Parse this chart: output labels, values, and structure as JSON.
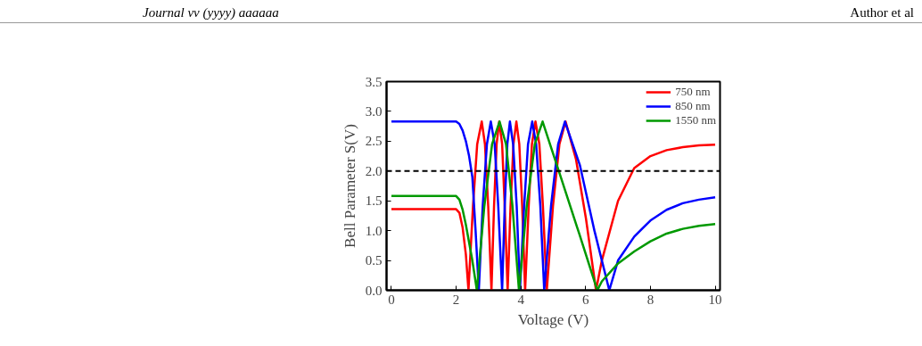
{
  "chart_data": {
    "type": "line",
    "xlabel": "Voltage (V)",
    "ylabel": "Bell Parameter S(V)",
    "annotations": [
      "Journal vv (yyyy) aaaaaa",
      "Author et al"
    ],
    "xlim": [
      -0.15,
      10.15
    ],
    "ylim": [
      0,
      3.5
    ],
    "xticks": [
      0,
      2,
      4,
      6,
      8,
      10
    ],
    "yticks": [
      {
        "value": 0,
        "label": "0.0"
      },
      {
        "value": 0.5,
        "label": "0.5"
      },
      {
        "value": 1,
        "label": "1.0"
      },
      {
        "value": 1.5,
        "label": "1.5"
      },
      {
        "value": 2,
        "label": "2.0"
      },
      {
        "value": 2.5,
        "label": "2.5"
      },
      {
        "value": 3,
        "label": "3.0"
      },
      {
        "value": 3.5,
        "label": "3.5"
      }
    ],
    "grid": false,
    "legend": "top right",
    "line_style": "solid",
    "marker": "none",
    "ref_lines": [
      {
        "axis": "y",
        "value": 2,
        "color": "#000000",
        "line_style": "dashed"
      }
    ],
    "series": [
      {
        "name": "750 nm",
        "color": "#ff0000",
        "x": [
          0,
          1,
          2.0,
          2.1,
          2.2,
          2.3,
          2.38,
          2.52,
          2.65,
          2.79,
          2.89,
          2.99,
          3.09,
          3.17,
          3.25,
          3.33,
          3.42,
          3.5,
          3.59,
          3.68,
          3.77,
          3.86,
          3.95,
          4.04,
          4.13,
          4.24,
          4.34,
          4.45,
          4.57,
          4.68,
          4.8,
          4.99,
          5.19,
          5.38,
          5.7,
          6.01,
          6.32,
          6.5,
          7.0,
          7.5,
          8.0,
          8.5,
          9.0,
          9.5,
          10
        ],
        "values": [
          1.36,
          1.36,
          1.36,
          1.3,
          1.05,
          0.6,
          0,
          1.41,
          2.45,
          2.83,
          2.45,
          1.41,
          0,
          1.41,
          2.45,
          2.83,
          2.45,
          1.41,
          0,
          1.41,
          2.45,
          2.83,
          2.45,
          1.41,
          0,
          1.41,
          2.45,
          2.83,
          2.45,
          1.41,
          0,
          1.41,
          2.45,
          2.83,
          2.2,
          1.2,
          0,
          0.5,
          1.5,
          2.05,
          2.25,
          2.35,
          2.4,
          2.43,
          2.44
        ]
      },
      {
        "name": "850 nm",
        "color": "#0000ff",
        "x": [
          0,
          1,
          2.0,
          2.1,
          2.2,
          2.3,
          2.4,
          2.5,
          2.6,
          2.7,
          2.82,
          2.95,
          3.07,
          3.19,
          3.3,
          3.42,
          3.5,
          3.58,
          3.66,
          3.76,
          3.87,
          3.97,
          4.1,
          4.22,
          4.35,
          4.47,
          4.6,
          4.72,
          4.93,
          5.15,
          5.36,
          5.82,
          6.27,
          6.73,
          7.0,
          7.5,
          8.0,
          8.5,
          9.0,
          9.5,
          10
        ],
        "values": [
          2.83,
          2.83,
          2.83,
          2.79,
          2.68,
          2.5,
          2.25,
          1.9,
          1.0,
          0,
          1.41,
          2.45,
          2.83,
          2.45,
          1.41,
          0,
          1.41,
          2.45,
          2.83,
          2.45,
          1.41,
          0,
          1.41,
          2.45,
          2.83,
          2.45,
          1.41,
          0,
          1.41,
          2.45,
          2.83,
          2.1,
          1.0,
          0,
          0.5,
          0.9,
          1.17,
          1.35,
          1.46,
          1.52,
          1.56
        ]
      },
      {
        "name": "1550 nm",
        "color": "#009900",
        "x": [
          0,
          1,
          2.0,
          2.1,
          2.2,
          2.3,
          2.4,
          2.5,
          2.64,
          2.87,
          3.11,
          3.34,
          3.54,
          3.74,
          3.94,
          4.18,
          4.43,
          4.67,
          5.23,
          5.8,
          6.36,
          6.5,
          7.0,
          7.5,
          8.0,
          8.5,
          9.0,
          9.5,
          10
        ],
        "values": [
          1.58,
          1.58,
          1.58,
          1.52,
          1.35,
          1.1,
          0.8,
          0.5,
          0,
          1.41,
          2.45,
          2.83,
          2.45,
          1.41,
          0,
          1.41,
          2.45,
          2.83,
          1.9,
          0.95,
          0,
          0.15,
          0.45,
          0.65,
          0.82,
          0.95,
          1.03,
          1.08,
          1.11
        ]
      }
    ]
  }
}
